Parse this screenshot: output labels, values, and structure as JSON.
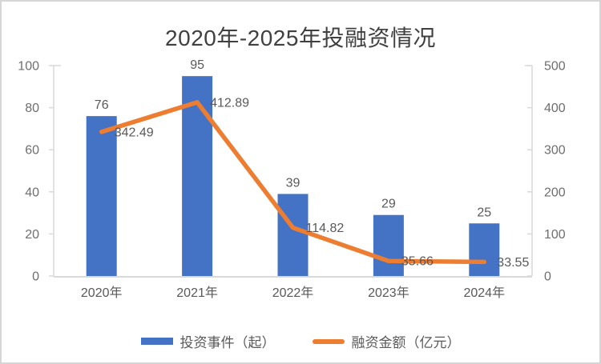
{
  "chart_data": {
    "type": "combo",
    "title": "2020年-2025年投融资情况",
    "categories": [
      "2020年",
      "2021年",
      "2022年",
      "2023年",
      "2024年"
    ],
    "series": [
      {
        "name": "投资事件（起）",
        "type": "bar",
        "axis": "left",
        "color": "#4472C4",
        "values": [
          76,
          95,
          39,
          29,
          25
        ],
        "labels": [
          "76",
          "95",
          "39",
          "29",
          "25"
        ]
      },
      {
        "name": "融资金额（亿元）",
        "type": "line",
        "axis": "right",
        "color": "#ED7D31",
        "values": [
          342.49,
          412.89,
          114.82,
          35.66,
          33.55
        ],
        "labels": [
          "342.49",
          "412.89",
          "114.82",
          "35.66",
          "33.55"
        ]
      }
    ],
    "left_axis": {
      "min": 0,
      "max": 100,
      "ticks": [
        0,
        20,
        40,
        60,
        80,
        100
      ]
    },
    "right_axis": {
      "min": 0,
      "max": 500,
      "ticks": [
        0,
        100,
        200,
        300,
        400,
        500
      ]
    },
    "grid": false,
    "legend_position": "bottom"
  },
  "colors": {
    "axis_line": "#d9d9d9",
    "tick_label": "#6e6e6e",
    "data_label": "#595959",
    "title": "#404040",
    "frame_border": "#d6d6d6",
    "background": "#ffffff"
  }
}
